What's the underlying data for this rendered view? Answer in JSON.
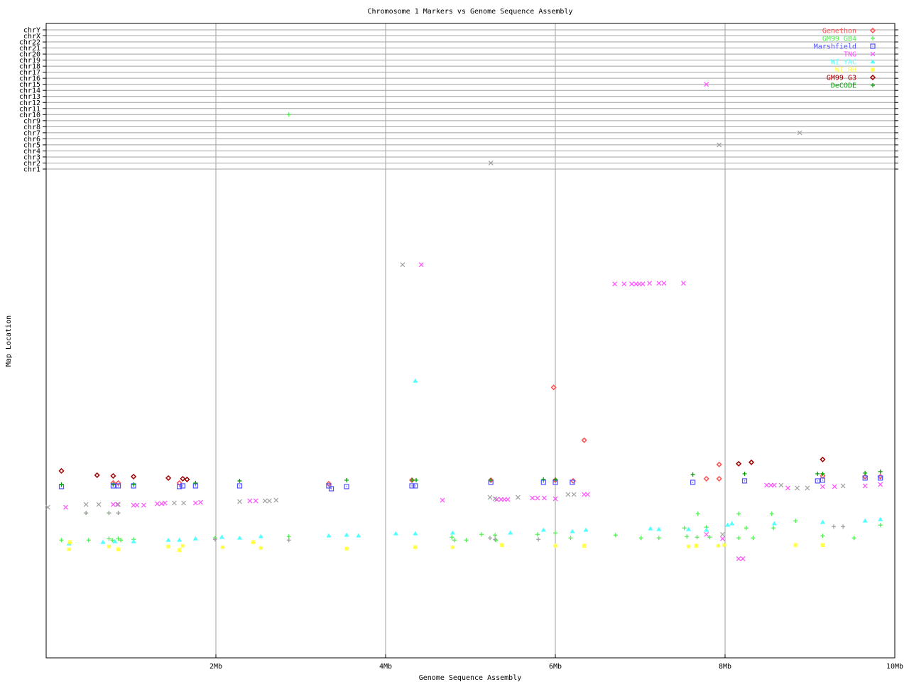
{
  "chart_data": {
    "type": "scatter",
    "title": "Chromosome 1 Markers vs Genome Sequence Assembly",
    "xlabel": "Genome Sequence Assembly",
    "ylabel": "Map Location",
    "xlim": [
      0,
      10
    ],
    "x_ticks": [
      {
        "value": 2,
        "label": "2Mb"
      },
      {
        "value": 4,
        "label": "4Mb"
      },
      {
        "value": 6,
        "label": "6Mb"
      },
      {
        "value": 8,
        "label": "8Mb"
      },
      {
        "value": 10,
        "label": "10Mb"
      }
    ],
    "y_categories": [
      "chr1",
      "chr2",
      "chr3",
      "chr4",
      "chr5",
      "chr6",
      "chr7",
      "chr8",
      "chr9",
      "chr10",
      "chr11",
      "chr12",
      "chr13",
      "chr14",
      "chr15",
      "chr16",
      "chr17",
      "chr18",
      "chr19",
      "chr20",
      "chr21",
      "chr22",
      "chrX",
      "chrY"
    ],
    "ylim_chr1_map": [
      0,
      137
    ],
    "grid": "vertical at x ticks; horizontal at chromosome rows",
    "legend_placement": "top-right",
    "series": [
      {
        "name": "Genethon",
        "color": "#ff5050",
        "marker": "diamond",
        "points": [
          [
            0.79,
            49
          ],
          [
            0.85,
            49
          ],
          [
            1.57,
            49
          ],
          [
            3.33,
            48.8
          ],
          [
            6.21,
            49.6
          ],
          [
            7.78,
            50.2
          ],
          [
            7.93,
            50.2
          ],
          [
            9.15,
            51
          ],
          [
            9.65,
            50.8
          ],
          [
            9.83,
            50.8
          ],
          [
            5.98,
            75.8
          ],
          [
            6.34,
            61
          ],
          [
            7.93,
            54.2
          ],
          [
            4.31,
            49.8
          ],
          [
            5.24,
            49.8
          ],
          [
            6.0,
            49.8
          ]
        ]
      },
      {
        "name": "GM99 GB4",
        "color": "#50f050",
        "marker": "plus",
        "points": [
          [
            2.86,
            "chr10"
          ],
          [
            0.18,
            33
          ],
          [
            0.5,
            33
          ],
          [
            0.74,
            33.4
          ],
          [
            0.78,
            33
          ],
          [
            0.85,
            33.4
          ],
          [
            0.88,
            33
          ],
          [
            1.03,
            33.2
          ],
          [
            1.99,
            33.6
          ],
          [
            2.86,
            34
          ],
          [
            4.78,
            33.8
          ],
          [
            4.81,
            33
          ],
          [
            4.95,
            33
          ],
          [
            5.13,
            34.6
          ],
          [
            5.29,
            34.4
          ],
          [
            5.3,
            33
          ],
          [
            5.79,
            34.6
          ],
          [
            6.0,
            35
          ],
          [
            6.18,
            33.6
          ],
          [
            6.71,
            34.4
          ],
          [
            7.01,
            33.6
          ],
          [
            7.22,
            33.6
          ],
          [
            7.52,
            36.4
          ],
          [
            7.68,
            40.4
          ],
          [
            7.67,
            33.8
          ],
          [
            8.16,
            40.4
          ],
          [
            8.16,
            33.6
          ],
          [
            8.25,
            36.4
          ],
          [
            8.33,
            33.6
          ],
          [
            8.55,
            40.4
          ],
          [
            8.57,
            36.4
          ],
          [
            8.83,
            38.4
          ],
          [
            9.15,
            34.2
          ],
          [
            9.52,
            33.6
          ],
          [
            9.83,
            37.2
          ],
          [
            7.55,
            34
          ],
          [
            7.78,
            36.6
          ],
          [
            7.82,
            33.8
          ],
          [
            0.47,
            40.6
          ],
          [
            0.74,
            40.6
          ],
          [
            0.85,
            40.6
          ]
        ]
      },
      {
        "name": "Marshfield",
        "color": "#5050ff",
        "marker": "square",
        "points": [
          [
            0.18,
            48
          ],
          [
            0.79,
            48.2
          ],
          [
            0.85,
            48.2
          ],
          [
            1.03,
            48.2
          ],
          [
            1.57,
            48
          ],
          [
            1.61,
            48.2
          ],
          [
            1.76,
            48.2
          ],
          [
            2.28,
            48.2
          ],
          [
            3.33,
            48.2
          ],
          [
            3.36,
            47.4
          ],
          [
            3.54,
            48
          ],
          [
            4.31,
            48.2
          ],
          [
            4.35,
            48.2
          ],
          [
            5.24,
            49.2
          ],
          [
            5.86,
            49.2
          ],
          [
            6.0,
            49.2
          ],
          [
            6.2,
            49.2
          ],
          [
            7.62,
            49.2
          ],
          [
            8.23,
            49.6
          ],
          [
            9.09,
            49.6
          ],
          [
            9.15,
            49.8
          ],
          [
            9.65,
            50.4
          ],
          [
            9.83,
            50.4
          ]
        ]
      },
      {
        "name": "TNG",
        "color": "#ff50ff",
        "marker": "x",
        "points": [
          [
            7.78,
            "chr15"
          ],
          [
            0.23,
            42.2
          ],
          [
            0.79,
            43
          ],
          [
            0.84,
            43
          ],
          [
            1.03,
            42.8
          ],
          [
            1.07,
            42.8
          ],
          [
            1.15,
            42.8
          ],
          [
            1.31,
            43.2
          ],
          [
            1.36,
            43.2
          ],
          [
            1.4,
            43.4
          ],
          [
            1.76,
            43.4
          ],
          [
            1.82,
            43.6
          ],
          [
            2.4,
            44
          ],
          [
            2.47,
            44
          ],
          [
            4.67,
            44.2
          ],
          [
            5.31,
            44.4
          ],
          [
            5.36,
            44.4
          ],
          [
            5.4,
            44.4
          ],
          [
            5.44,
            44.4
          ],
          [
            5.73,
            44.8
          ],
          [
            5.79,
            44.8
          ],
          [
            5.87,
            44.8
          ],
          [
            6.0,
            44.6
          ],
          [
            6.34,
            45.8
          ],
          [
            6.38,
            45.8
          ],
          [
            6.7,
            104.8
          ],
          [
            6.81,
            104.8
          ],
          [
            6.9,
            104.8
          ],
          [
            6.95,
            104.8
          ],
          [
            6.99,
            104.8
          ],
          [
            7.03,
            104.8
          ],
          [
            7.11,
            105
          ],
          [
            7.22,
            105
          ],
          [
            7.28,
            105
          ],
          [
            7.51,
            105
          ],
          [
            4.42,
            110.2
          ],
          [
            8.49,
            48.4
          ],
          [
            8.54,
            48.4
          ],
          [
            8.58,
            48.4
          ],
          [
            8.74,
            47.6
          ],
          [
            9.15,
            48
          ],
          [
            9.29,
            48
          ],
          [
            9.65,
            48.2
          ],
          [
            9.83,
            48.6
          ],
          [
            8.16,
            27.8
          ],
          [
            8.21,
            27.8
          ],
          [
            7.78,
            34.6
          ],
          [
            7.97,
            33.4
          ]
        ]
      },
      {
        "name": "WI YAC",
        "color": "#50ffff",
        "marker": "triangle",
        "points": [
          [
            0.27,
            32
          ],
          [
            0.67,
            32.4
          ],
          [
            0.81,
            32.6
          ],
          [
            1.03,
            32.6
          ],
          [
            1.44,
            33
          ],
          [
            1.57,
            33
          ],
          [
            1.76,
            33.4
          ],
          [
            2.07,
            33.8
          ],
          [
            2.28,
            33.6
          ],
          [
            2.53,
            34
          ],
          [
            3.33,
            34.2
          ],
          [
            3.54,
            34.4
          ],
          [
            3.68,
            34.2
          ],
          [
            4.12,
            34.8
          ],
          [
            4.35,
            34.8
          ],
          [
            4.79,
            35
          ],
          [
            5.47,
            35
          ],
          [
            5.86,
            35.8
          ],
          [
            6.2,
            35.4
          ],
          [
            6.36,
            35.8
          ],
          [
            7.12,
            36.2
          ],
          [
            7.22,
            36
          ],
          [
            7.57,
            36
          ],
          [
            7.78,
            35.8
          ],
          [
            8.03,
            37.2
          ],
          [
            8.08,
            37.6
          ],
          [
            8.58,
            37.6
          ],
          [
            9.15,
            38
          ],
          [
            9.65,
            38.4
          ],
          [
            9.83,
            38.8
          ],
          [
            4.35,
            77.6
          ]
        ]
      },
      {
        "name": "WI RH",
        "color": "#ffff40",
        "marker": "star",
        "points": [
          [
            0.27,
            30.4
          ],
          [
            0.28,
            32.4
          ],
          [
            0.74,
            31.2
          ],
          [
            0.85,
            30.4
          ],
          [
            1.44,
            31.2
          ],
          [
            1.57,
            30.2
          ],
          [
            1.61,
            31.4
          ],
          [
            2.08,
            31
          ],
          [
            2.44,
            32.4
          ],
          [
            2.53,
            30.8
          ],
          [
            3.54,
            30.6
          ],
          [
            4.35,
            31
          ],
          [
            4.79,
            31
          ],
          [
            5.37,
            31.6
          ],
          [
            6.0,
            31.4
          ],
          [
            6.34,
            31.4
          ],
          [
            7.57,
            31.2
          ],
          [
            7.66,
            31.4
          ],
          [
            7.92,
            31.4
          ],
          [
            7.99,
            31.6
          ],
          [
            8.83,
            31.6
          ],
          [
            9.15,
            31.6
          ]
        ]
      },
      {
        "name": "GM99 G3",
        "color": "#a00000",
        "marker": "diamond",
        "points": [
          [
            0.18,
            52.4
          ],
          [
            0.6,
            51.2
          ],
          [
            0.79,
            51
          ],
          [
            1.03,
            50.8
          ],
          [
            1.44,
            50.4
          ],
          [
            1.61,
            50.2
          ],
          [
            1.66,
            50
          ],
          [
            8.16,
            54.4
          ],
          [
            8.31,
            54.8
          ],
          [
            9.15,
            55.6
          ]
        ]
      },
      {
        "name": "DeCODE",
        "color": "#00a000",
        "marker": "plus",
        "points": [
          [
            0.18,
            48.6
          ],
          [
            0.79,
            48.6
          ],
          [
            1.03,
            48.6
          ],
          [
            1.76,
            49
          ],
          [
            2.28,
            49.6
          ],
          [
            3.54,
            49.8
          ],
          [
            4.31,
            49.8
          ],
          [
            4.36,
            49.8
          ],
          [
            5.24,
            49.8
          ],
          [
            5.86,
            50
          ],
          [
            6.0,
            50
          ],
          [
            7.62,
            51.4
          ],
          [
            8.23,
            51.6
          ],
          [
            9.09,
            51.6
          ],
          [
            9.15,
            51.6
          ],
          [
            9.65,
            51.8
          ],
          [
            9.83,
            52.2
          ]
        ]
      },
      {
        "color": "#a0a0a0",
        "marker": "x",
        "points": [
          [
            8.88,
            "chr7"
          ],
          [
            7.93,
            "chr5"
          ],
          [
            5.24,
            "chr2"
          ],
          [
            0.02,
            42.2
          ],
          [
            0.47,
            43
          ],
          [
            0.62,
            43
          ],
          [
            0.85,
            43
          ],
          [
            1.51,
            43.4
          ],
          [
            1.62,
            43.4
          ],
          [
            2.28,
            43.8
          ],
          [
            2.58,
            44
          ],
          [
            2.63,
            44
          ],
          [
            2.71,
            44.2
          ],
          [
            5.56,
            45
          ],
          [
            6.15,
            45.8
          ],
          [
            6.22,
            45.8
          ],
          [
            8.66,
            48.4
          ],
          [
            8.85,
            47.6
          ],
          [
            8.97,
            47.6
          ],
          [
            9.39,
            48.2
          ],
          [
            4.2,
            110.2
          ],
          [
            7.97,
            34.6
          ],
          [
            5.23,
            45
          ],
          [
            5.29,
            44.6
          ]
        ]
      },
      {
        "color": "#a0a0a0",
        "marker": "plus",
        "points": [
          [
            0.47,
            40.6
          ],
          [
            0.74,
            40.6
          ],
          [
            0.85,
            40.6
          ],
          [
            1.99,
            33.2
          ],
          [
            2.86,
            33
          ],
          [
            5.23,
            33.6
          ],
          [
            5.29,
            33.2
          ],
          [
            5.8,
            33.2
          ],
          [
            9.28,
            36.8
          ],
          [
            9.39,
            36.8
          ]
        ]
      }
    ]
  }
}
